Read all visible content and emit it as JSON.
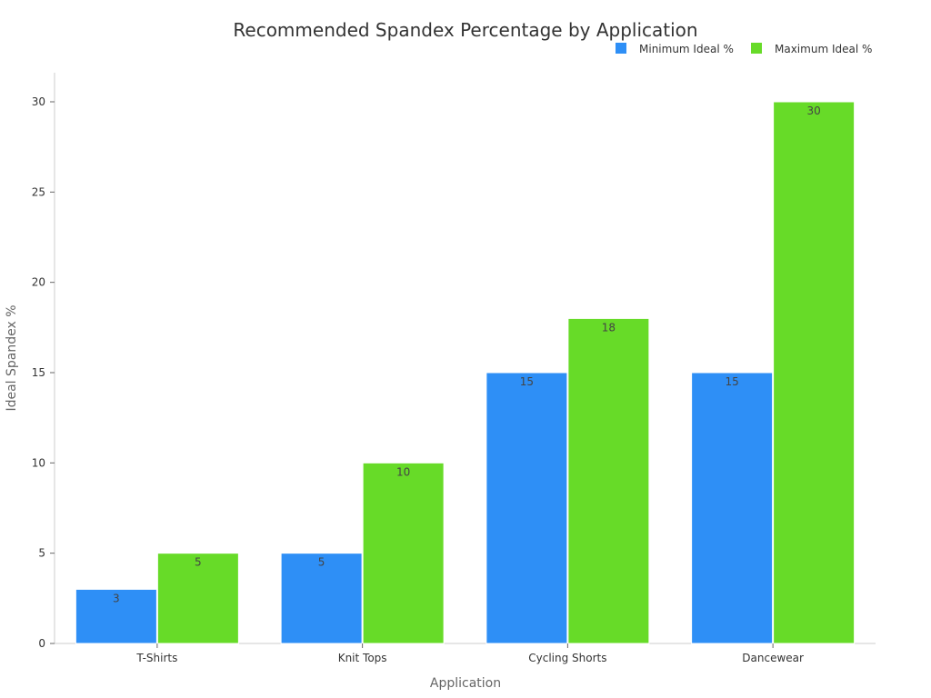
{
  "chart_data": {
    "type": "bar",
    "title": "Recommended Spandex Percentage by Application",
    "xlabel": "Application",
    "ylabel": "Ideal Spandex %",
    "categories": [
      "T-Shirts",
      "Knit Tops",
      "Cycling Shorts",
      "Dancewear"
    ],
    "series": [
      {
        "name": "Minimum Ideal %",
        "values": [
          3,
          5,
          15,
          15
        ],
        "color": "#2e8ff6"
      },
      {
        "name": "Maximum Ideal %",
        "values": [
          5,
          10,
          18,
          30
        ],
        "color": "#67db28"
      }
    ],
    "ylim": [
      0,
      30
    ],
    "yticks": [
      0,
      5,
      10,
      15,
      20,
      25,
      30
    ],
    "grid": false,
    "legend_position": "top-right",
    "data_labels": true
  }
}
